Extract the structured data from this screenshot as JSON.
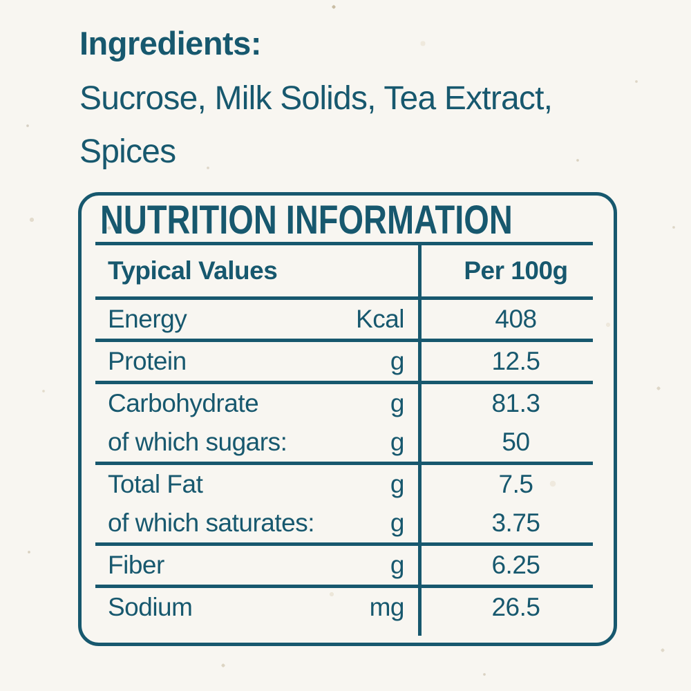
{
  "colors": {
    "teal": "#17586E",
    "bg": "#F8F6F1"
  },
  "ingredients": {
    "heading": "Ingredients:",
    "text": "Sucrose, Milk Solids, Tea Extract, Spices"
  },
  "nutrition": {
    "title": "NUTRITION INFORMATION",
    "header": {
      "label_column": "Typical Values",
      "value_column": "Per 100g"
    },
    "groups": [
      [
        {
          "label": "Energy",
          "unit": "Kcal",
          "value": "408"
        }
      ],
      [
        {
          "label": "Protein",
          "unit": "g",
          "value": "12.5"
        }
      ],
      [
        {
          "label": "Carbohydrate",
          "unit": "g",
          "value": "81.3"
        },
        {
          "label": "of which sugars:",
          "unit": "g",
          "value": "50"
        }
      ],
      [
        {
          "label": "Total Fat",
          "unit": "g",
          "value": "7.5"
        },
        {
          "label": "of which saturates:",
          "unit": "g",
          "value": "3.75"
        }
      ],
      [
        {
          "label": "Fiber",
          "unit": "g",
          "value": "6.25"
        }
      ],
      [
        {
          "label": "Sodium",
          "unit": "mg",
          "value": "26.5"
        }
      ]
    ]
  }
}
